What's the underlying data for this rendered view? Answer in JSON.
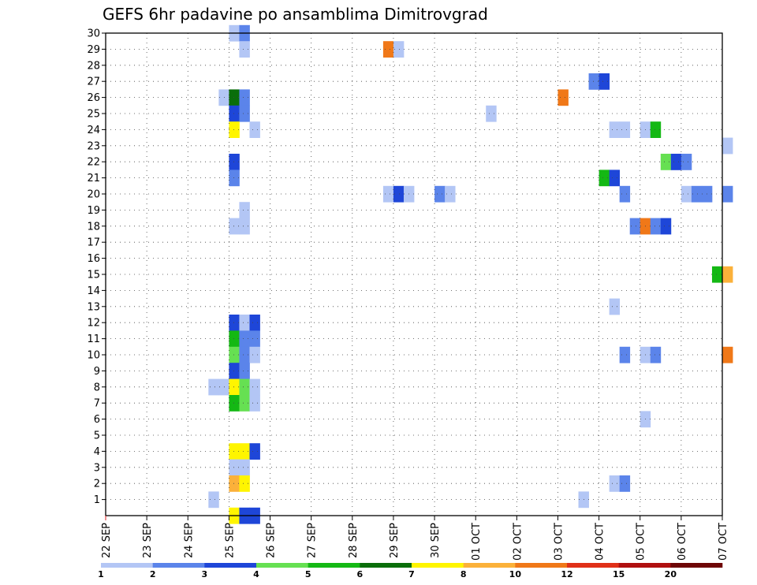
{
  "title": "GEFS 6hr padavine po ansamblima Dimitrovgrad",
  "chart_data": {
    "type": "heatmap",
    "title": "GEFS 6hr padavine po ansamblima Dimitrovgrad",
    "xlabel": "",
    "ylabel": "",
    "x_tick_labels": [
      "22 SEP",
      "23 SEP",
      "24 SEP",
      "25 SEP",
      "26 SEP",
      "27 SEP",
      "28 SEP",
      "29 SEP",
      "30 SEP",
      "01 OCT",
      "02 OCT",
      "03 OCT",
      "04 OCT",
      "05 OCT",
      "06 OCT",
      "07 OCT"
    ],
    "y_tick_labels": [
      "1",
      "2",
      "3",
      "4",
      "5",
      "6",
      "7",
      "8",
      "9",
      "10",
      "11",
      "12",
      "13",
      "14",
      "15",
      "16",
      "17",
      "18",
      "19",
      "20",
      "21",
      "22",
      "23",
      "24",
      "25",
      "26",
      "27",
      "28",
      "29",
      "30"
    ],
    "y_range": [
      0,
      30
    ],
    "step_hours": 6,
    "grid": true,
    "legend_position": "bottom",
    "color_scale": {
      "labels": [
        "1",
        "2",
        "3",
        "4",
        "5",
        "6",
        "7",
        "8",
        "10",
        "12",
        "15",
        "20"
      ],
      "colors": [
        "#b3c6f5",
        "#5b84ea",
        "#1e46d8",
        "#66e052",
        "#14b814",
        "#0a6e0a",
        "#fff500",
        "#fbb13a",
        "#f07818",
        "#e03018",
        "#b01010",
        "#6e0606"
      ]
    },
    "cells": [
      {
        "day": 3,
        "slot": 0,
        "member": 30,
        "cat": 1
      },
      {
        "day": 3,
        "slot": 1,
        "member": 30,
        "cat": 2
      },
      {
        "day": 3,
        "slot": 1,
        "member": 29,
        "cat": 1
      },
      {
        "day": 6,
        "slot": 3,
        "member": 29,
        "cat": 9
      },
      {
        "day": 7,
        "slot": 0,
        "member": 29,
        "cat": 1
      },
      {
        "day": 11,
        "slot": 3,
        "member": 27,
        "cat": 2
      },
      {
        "day": 12,
        "slot": 0,
        "member": 27,
        "cat": 3
      },
      {
        "day": 2,
        "slot": 3,
        "member": 26,
        "cat": 1
      },
      {
        "day": 3,
        "slot": 0,
        "member": 26,
        "cat": 6
      },
      {
        "day": 3,
        "slot": 1,
        "member": 26,
        "cat": 2
      },
      {
        "day": 11,
        "slot": 0,
        "member": 26,
        "cat": 9
      },
      {
        "day": 3,
        "slot": 0,
        "member": 25,
        "cat": 3
      },
      {
        "day": 3,
        "slot": 1,
        "member": 25,
        "cat": 2
      },
      {
        "day": 9,
        "slot": 1,
        "member": 25,
        "cat": 1
      },
      {
        "day": 3,
        "slot": 0,
        "member": 24,
        "cat": 7
      },
      {
        "day": 3,
        "slot": 2,
        "member": 24,
        "cat": 1
      },
      {
        "day": 12,
        "slot": 1,
        "member": 24,
        "cat": 1
      },
      {
        "day": 12,
        "slot": 2,
        "member": 24,
        "cat": 1
      },
      {
        "day": 13,
        "slot": 0,
        "member": 24,
        "cat": 1
      },
      {
        "day": 13,
        "slot": 1,
        "member": 24,
        "cat": 5
      },
      {
        "day": 15,
        "slot": 0,
        "member": 23,
        "cat": 1
      },
      {
        "day": 13,
        "slot": 2,
        "member": 22,
        "cat": 4
      },
      {
        "day": 13,
        "slot": 3,
        "member": 22,
        "cat": 3
      },
      {
        "day": 14,
        "slot": 0,
        "member": 22,
        "cat": 2
      },
      {
        "day": 3,
        "slot": 0,
        "member": 22,
        "cat": 3
      },
      {
        "day": 3,
        "slot": 0,
        "member": 21,
        "cat": 2
      },
      {
        "day": 12,
        "slot": 0,
        "member": 21,
        "cat": 5
      },
      {
        "day": 12,
        "slot": 1,
        "member": 21,
        "cat": 3
      },
      {
        "day": 6,
        "slot": 3,
        "member": 20,
        "cat": 1
      },
      {
        "day": 7,
        "slot": 0,
        "member": 20,
        "cat": 3
      },
      {
        "day": 7,
        "slot": 1,
        "member": 20,
        "cat": 1
      },
      {
        "day": 8,
        "slot": 0,
        "member": 20,
        "cat": 2
      },
      {
        "day": 8,
        "slot": 1,
        "member": 20,
        "cat": 1
      },
      {
        "day": 12,
        "slot": 2,
        "member": 20,
        "cat": 2
      },
      {
        "day": 14,
        "slot": 0,
        "member": 20,
        "cat": 1
      },
      {
        "day": 14,
        "slot": 1,
        "member": 20,
        "cat": 2
      },
      {
        "day": 14,
        "slot": 2,
        "member": 20,
        "cat": 2
      },
      {
        "day": 15,
        "slot": 0,
        "member": 20,
        "cat": 2
      },
      {
        "day": 3,
        "slot": 1,
        "member": 19,
        "cat": 1
      },
      {
        "day": 3,
        "slot": 0,
        "member": 18,
        "cat": 1
      },
      {
        "day": 3,
        "slot": 1,
        "member": 18,
        "cat": 1
      },
      {
        "day": 12,
        "slot": 3,
        "member": 18,
        "cat": 2
      },
      {
        "day": 13,
        "slot": 0,
        "member": 18,
        "cat": 9
      },
      {
        "day": 13,
        "slot": 1,
        "member": 18,
        "cat": 2
      },
      {
        "day": 13,
        "slot": 2,
        "member": 18,
        "cat": 3
      },
      {
        "day": 14,
        "slot": 3,
        "member": 15,
        "cat": 5
      },
      {
        "day": 15,
        "slot": 0,
        "member": 15,
        "cat": 8
      },
      {
        "day": 12,
        "slot": 1,
        "member": 13,
        "cat": 1
      },
      {
        "day": 3,
        "slot": 0,
        "member": 12,
        "cat": 3
      },
      {
        "day": 3,
        "slot": 1,
        "member": 12,
        "cat": 1
      },
      {
        "day": 3,
        "slot": 2,
        "member": 12,
        "cat": 3
      },
      {
        "day": 3,
        "slot": 0,
        "member": 11,
        "cat": 5
      },
      {
        "day": 3,
        "slot": 1,
        "member": 11,
        "cat": 2
      },
      {
        "day": 3,
        "slot": 2,
        "member": 11,
        "cat": 2
      },
      {
        "day": 3,
        "slot": 0,
        "member": 10,
        "cat": 4
      },
      {
        "day": 3,
        "slot": 1,
        "member": 10,
        "cat": 2
      },
      {
        "day": 3,
        "slot": 2,
        "member": 10,
        "cat": 1
      },
      {
        "day": 12,
        "slot": 2,
        "member": 10,
        "cat": 2
      },
      {
        "day": 13,
        "slot": 0,
        "member": 10,
        "cat": 1
      },
      {
        "day": 13,
        "slot": 1,
        "member": 10,
        "cat": 2
      },
      {
        "day": 15,
        "slot": 0,
        "member": 10,
        "cat": 9
      },
      {
        "day": 3,
        "slot": 0,
        "member": 9,
        "cat": 3
      },
      {
        "day": 3,
        "slot": 1,
        "member": 9,
        "cat": 2
      },
      {
        "day": 2,
        "slot": 2,
        "member": 8,
        "cat": 1
      },
      {
        "day": 2,
        "slot": 3,
        "member": 8,
        "cat": 1
      },
      {
        "day": 3,
        "slot": 0,
        "member": 8,
        "cat": 7
      },
      {
        "day": 3,
        "slot": 1,
        "member": 8,
        "cat": 4
      },
      {
        "day": 3,
        "slot": 2,
        "member": 8,
        "cat": 1
      },
      {
        "day": 3,
        "slot": 0,
        "member": 7,
        "cat": 5
      },
      {
        "day": 3,
        "slot": 1,
        "member": 7,
        "cat": 4
      },
      {
        "day": 3,
        "slot": 2,
        "member": 7,
        "cat": 1
      },
      {
        "day": 13,
        "slot": 0,
        "member": 6,
        "cat": 1
      },
      {
        "day": 3,
        "slot": 0,
        "member": 4,
        "cat": 7
      },
      {
        "day": 3,
        "slot": 1,
        "member": 4,
        "cat": 7
      },
      {
        "day": 3,
        "slot": 2,
        "member": 4,
        "cat": 3
      },
      {
        "day": 3,
        "slot": 0,
        "member": 3,
        "cat": 1
      },
      {
        "day": 3,
        "slot": 1,
        "member": 3,
        "cat": 1
      },
      {
        "day": 3,
        "slot": 0,
        "member": 2,
        "cat": 8
      },
      {
        "day": 3,
        "slot": 1,
        "member": 2,
        "cat": 7
      },
      {
        "day": 12,
        "slot": 1,
        "member": 2,
        "cat": 1
      },
      {
        "day": 12,
        "slot": 2,
        "member": 2,
        "cat": 2
      },
      {
        "day": 2,
        "slot": 2,
        "member": 1,
        "cat": 1
      },
      {
        "day": 11,
        "slot": 2,
        "member": 1,
        "cat": 1
      },
      {
        "day": 3,
        "slot": 0,
        "member": 0,
        "cat": 7
      },
      {
        "day": 3,
        "slot": 1,
        "member": 0,
        "cat": 3
      },
      {
        "day": 3,
        "slot": 2,
        "member": 0,
        "cat": 3
      }
    ]
  }
}
